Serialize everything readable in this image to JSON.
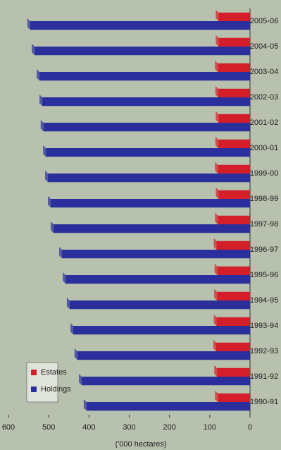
{
  "chart_data": {
    "type": "bar",
    "y_label": "('000 hectares)",
    "categories": [
      "1990-91",
      "1991-92",
      "1992-93",
      "1993-94",
      "1994-95",
      "1995-96",
      "1996-97",
      "1997-98",
      "1998-99",
      "1999-00",
      "2000-01",
      "2001-02",
      "2002-03",
      "2003-04",
      "2004-05",
      "2005-06"
    ],
    "series": [
      {
        "name": "Holdings",
        "color": "#2b2f9c",
        "values": [
          406,
          418,
          429,
          439,
          448,
          458,
          467,
          488,
          495,
          502,
          507,
          513,
          516,
          523,
          535,
          546
        ]
      },
      {
        "name": "Estates",
        "color": "#d41f2a",
        "values": [
          80,
          82,
          84,
          83,
          82,
          81,
          83,
          80,
          78,
          80,
          79,
          78,
          79,
          80,
          78,
          78
        ]
      }
    ],
    "ylim": [
      0,
      600
    ],
    "yticks": [
      0,
      100,
      200,
      300,
      400,
      500,
      600
    ],
    "grid": false
  }
}
